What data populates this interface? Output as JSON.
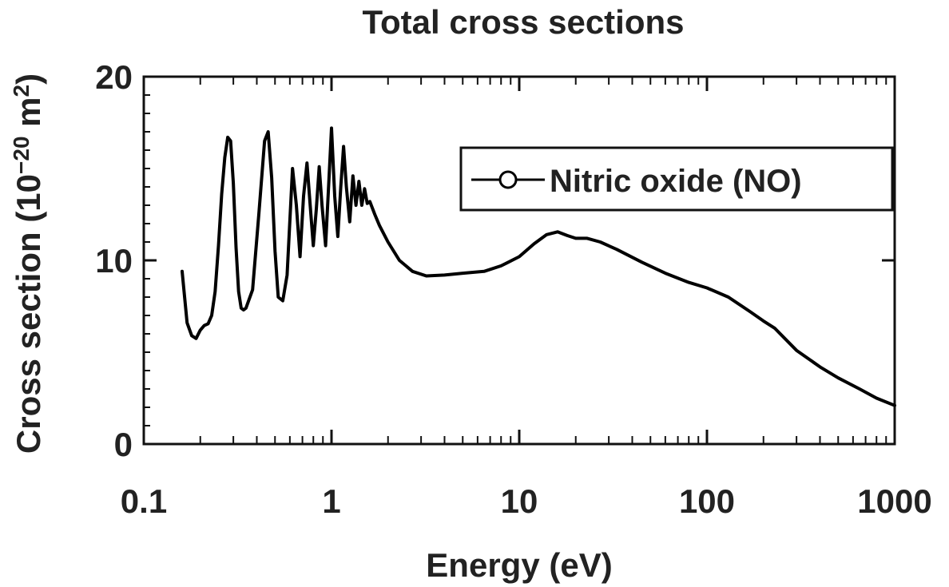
{
  "chart_data": {
    "type": "line",
    "title": "Total cross sections",
    "xlabel": "Energy (eV)",
    "ylabel_main": "Cross section (10",
    "ylabel_exp": "−20",
    "ylabel_unit": " m",
    "ylabel_unit_exp": "2",
    "ylabel_close": ")",
    "x_scale": "log",
    "xlim": [
      0.1,
      1000
    ],
    "ylim": [
      0,
      20
    ],
    "x_ticks": [
      0.1,
      1,
      10,
      100,
      1000
    ],
    "x_tick_labels": [
      "0.1",
      "1",
      "10",
      "100",
      "1000"
    ],
    "y_ticks": [
      0,
      10,
      20
    ],
    "y_tick_labels": [
      "0",
      "10",
      "20"
    ],
    "grid": false,
    "legend_position": "top-right",
    "series": [
      {
        "name": "Nitric oxide (NO)",
        "color": "#000000",
        "x": [
          0.16,
          0.165,
          0.17,
          0.18,
          0.19,
          0.2,
          0.21,
          0.22,
          0.23,
          0.24,
          0.25,
          0.26,
          0.27,
          0.28,
          0.29,
          0.3,
          0.31,
          0.32,
          0.33,
          0.34,
          0.35,
          0.38,
          0.41,
          0.44,
          0.46,
          0.48,
          0.5,
          0.52,
          0.55,
          0.58,
          0.62,
          0.65,
          0.68,
          0.71,
          0.74,
          0.77,
          0.8,
          0.83,
          0.86,
          0.89,
          0.93,
          0.97,
          1.0,
          1.04,
          1.08,
          1.12,
          1.16,
          1.2,
          1.25,
          1.3,
          1.35,
          1.4,
          1.45,
          1.5,
          1.55,
          1.6,
          1.7,
          1.8,
          2.0,
          2.3,
          2.7,
          3.2,
          4.0,
          5.0,
          6.5,
          8.0,
          10,
          12,
          14,
          16,
          18,
          20,
          23,
          27,
          33,
          45,
          60,
          80,
          100,
          130,
          170,
          200,
          230,
          300,
          400,
          500,
          650,
          800,
          1000
        ],
        "y": [
          9.4,
          8.0,
          6.6,
          5.9,
          5.75,
          6.2,
          6.45,
          6.55,
          7.0,
          8.3,
          10.8,
          13.6,
          15.6,
          16.7,
          16.5,
          14.2,
          10.7,
          8.3,
          7.4,
          7.3,
          7.4,
          8.4,
          12.5,
          16.5,
          17.0,
          14.5,
          10.5,
          8.0,
          7.8,
          9.2,
          15.0,
          13.0,
          10.2,
          13.5,
          15.3,
          13.0,
          10.8,
          12.8,
          15.1,
          13.0,
          10.8,
          14.5,
          17.2,
          13.5,
          11.3,
          14.0,
          16.2,
          14.0,
          12.1,
          14.6,
          13.0,
          14.3,
          13.0,
          13.9,
          13.1,
          13.2,
          12.5,
          11.9,
          11.0,
          10.0,
          9.4,
          9.15,
          9.2,
          9.3,
          9.4,
          9.7,
          10.2,
          10.9,
          11.4,
          11.55,
          11.35,
          11.2,
          11.2,
          11.0,
          10.6,
          9.9,
          9.3,
          8.8,
          8.5,
          8.0,
          7.2,
          6.7,
          6.3,
          5.1,
          4.2,
          3.6,
          3.0,
          2.5,
          2.1
        ]
      }
    ]
  }
}
